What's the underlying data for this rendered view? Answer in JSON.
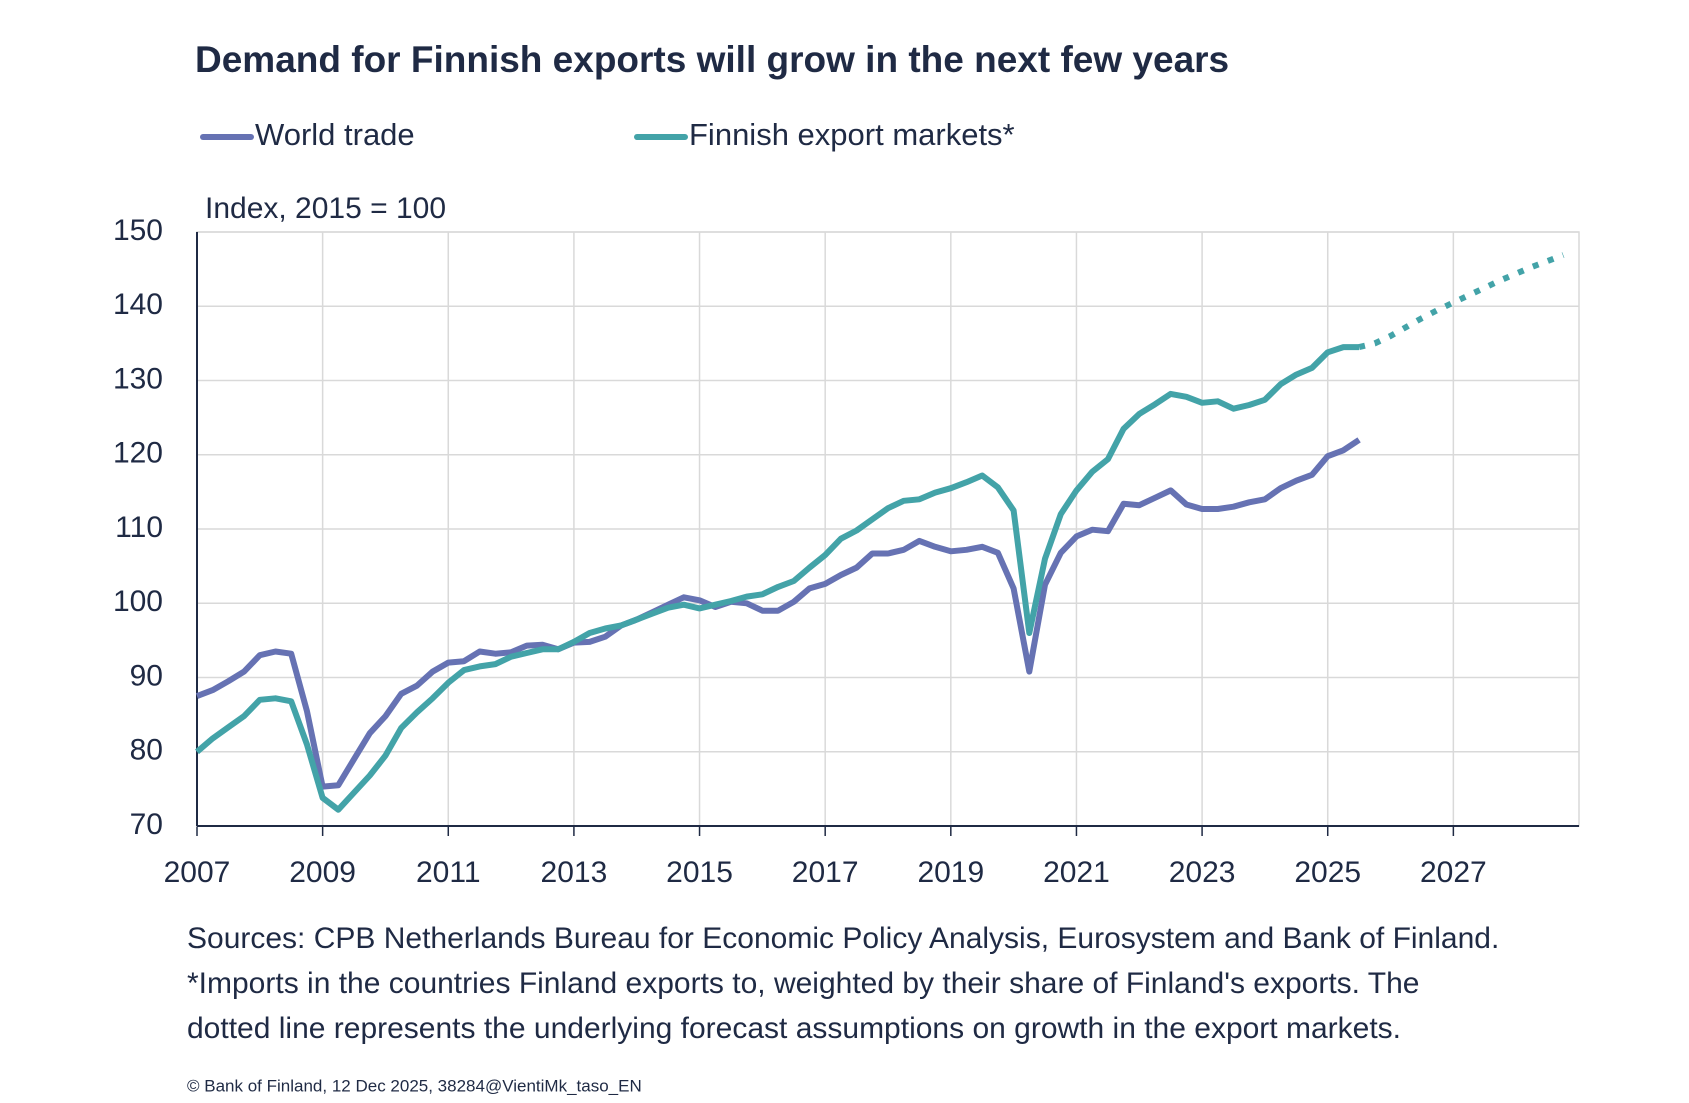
{
  "chart_data": {
    "type": "line",
    "title": "Demand for Finnish exports will grow in the next few years",
    "y_label": "Index, 2015 = 100",
    "notes": [
      "Sources: CPB Netherlands Bureau for Economic Policy Analysis, Eurosystem and Bank of Finland.",
      "*Imports in the countries Finland exports to, weighted by their share of Finland's exports. The",
      "dotted line represents the underlying forecast assumptions on growth in the export markets."
    ],
    "footer": "© Bank of Finland, 12 Dec 2025, 38284@VientiMk_taso_EN",
    "grid": true,
    "xlim": [
      2007,
      2029
    ],
    "xticks": [
      2007,
      2009,
      2011,
      2013,
      2015,
      2017,
      2019,
      2021,
      2023,
      2025,
      2027
    ],
    "ylim": [
      70,
      150
    ],
    "yticks": [
      70,
      80,
      90,
      100,
      110,
      120,
      130,
      140,
      150
    ],
    "x": [
      2007,
      2007.25,
      2007.5,
      2007.75,
      2008,
      2008.25,
      2008.5,
      2008.75,
      2009,
      2009.25,
      2009.5,
      2009.75,
      2010,
      2010.25,
      2010.5,
      2010.75,
      2011,
      2011.25,
      2011.5,
      2011.75,
      2012,
      2012.25,
      2012.5,
      2012.75,
      2013,
      2013.25,
      2013.5,
      2013.75,
      2014,
      2014.25,
      2014.5,
      2014.75,
      2015,
      2015.25,
      2015.5,
      2015.75,
      2016,
      2016.25,
      2016.5,
      2016.75,
      2017,
      2017.25,
      2017.5,
      2017.75,
      2018,
      2018.25,
      2018.5,
      2018.75,
      2019,
      2019.25,
      2019.5,
      2019.75,
      2020,
      2020.25,
      2020.5,
      2020.75,
      2021,
      2021.25,
      2021.5,
      2021.75,
      2022,
      2022.25,
      2022.5,
      2022.75,
      2023,
      2023.25,
      2023.5,
      2023.75,
      2024,
      2024.25,
      2024.5,
      2024.75,
      2025,
      2025.25,
      2025.5,
      2025.75,
      2026,
      2026.25,
      2026.5,
      2026.75,
      2027,
      2027.25,
      2027.5,
      2027.75,
      2028,
      2028.25,
      2028.5,
      2028.75
    ],
    "series": [
      {
        "name": "World trade",
        "color": "#6672b3",
        "style": "solid",
        "values": [
          87.5,
          88.3,
          89.5,
          90.8,
          93.0,
          93.5,
          93.2,
          85.5,
          75.3,
          75.5,
          79.0,
          82.5,
          84.8,
          87.8,
          88.9,
          90.8,
          92.0,
          92.2,
          93.5,
          93.2,
          93.4,
          94.3,
          94.4,
          93.8,
          94.7,
          94.8,
          95.5,
          97.0,
          97.8,
          98.8,
          99.8,
          100.8,
          100.4,
          99.5,
          100.2,
          100.0,
          99.0,
          99.0,
          100.2,
          102.0,
          102.6,
          103.8,
          104.8,
          106.7,
          106.7,
          107.2,
          108.4,
          107.6,
          107.0,
          107.2,
          107.6,
          106.8,
          102.0,
          90.8,
          102.5,
          106.8,
          109.0,
          109.9,
          109.7,
          113.4,
          113.2,
          114.2,
          115.2,
          113.3,
          112.7,
          112.7,
          113.0,
          113.6,
          114.0,
          115.5,
          116.5,
          117.3,
          119.8,
          120.6,
          122.0,
          null,
          null,
          null,
          null,
          null,
          null,
          null,
          null,
          null,
          null,
          null,
          null,
          null
        ]
      },
      {
        "name": "Finnish export markets*",
        "color": "#43a3a8",
        "style": "solid",
        "values": [
          80.0,
          81.8,
          83.3,
          84.8,
          87.0,
          87.2,
          86.8,
          81.0,
          73.8,
          72.2,
          74.5,
          76.8,
          79.5,
          83.2,
          85.3,
          87.2,
          89.3,
          91.0,
          91.5,
          91.8,
          92.8,
          93.3,
          93.8,
          93.8,
          94.8,
          96.0,
          96.6,
          97.0,
          97.8,
          98.6,
          99.4,
          99.8,
          99.3,
          99.8,
          100.3,
          100.9,
          101.2,
          102.2,
          103.0,
          104.8,
          106.5,
          108.7,
          109.8,
          111.3,
          112.8,
          113.8,
          114.0,
          114.9,
          115.5,
          116.3,
          117.2,
          115.6,
          112.5,
          96.0,
          106.0,
          112.0,
          115.2,
          117.7,
          119.4,
          123.5,
          125.5,
          126.8,
          128.2,
          127.8,
          127.0,
          127.2,
          126.2,
          126.7,
          127.4,
          129.5,
          130.8,
          131.7,
          133.8,
          134.5,
          134.5,
          null,
          null,
          null,
          null,
          null,
          null,
          null,
          null,
          null,
          null,
          null,
          null,
          null
        ]
      },
      {
        "color": "#43a3a8",
        "style": "dotted",
        "values": [
          null,
          null,
          null,
          null,
          null,
          null,
          null,
          null,
          null,
          null,
          null,
          null,
          null,
          null,
          null,
          null,
          null,
          null,
          null,
          null,
          null,
          null,
          null,
          null,
          null,
          null,
          null,
          null,
          null,
          null,
          null,
          null,
          null,
          null,
          null,
          null,
          null,
          null,
          null,
          null,
          null,
          null,
          null,
          null,
          null,
          null,
          null,
          null,
          null,
          null,
          null,
          null,
          null,
          null,
          null,
          null,
          null,
          null,
          null,
          null,
          null,
          null,
          null,
          null,
          null,
          null,
          null,
          null,
          null,
          null,
          null,
          null,
          null,
          null,
          134.5,
          135.0,
          136.0,
          137.2,
          138.4,
          139.5,
          140.5,
          141.5,
          142.5,
          143.5,
          144.4,
          145.3,
          146.1,
          146.9
        ]
      }
    ]
  }
}
